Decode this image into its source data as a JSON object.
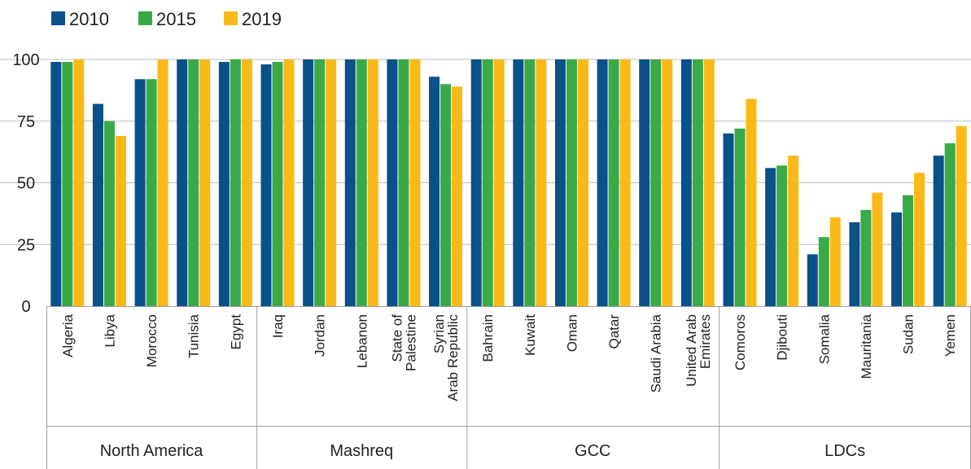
{
  "chart_data": {
    "type": "bar",
    "title": "",
    "xlabel": "",
    "ylabel": "",
    "ylim": [
      0,
      100
    ],
    "yticks": [
      0,
      25,
      50,
      75,
      100
    ],
    "grid": true,
    "legend_position": "top-left",
    "colors": [
      "#0a5089",
      "#3aaa49",
      "#fbb917"
    ],
    "groups": [
      {
        "label": "North America",
        "categories": [
          "Algeria",
          "Libya",
          "Morocco",
          "Tunisia",
          "Egypt"
        ]
      },
      {
        "label": "Mashreq",
        "categories": [
          "Iraq",
          "Jordan",
          "Lebanon",
          "State of|Palestine",
          "Syrian|Arab Republic"
        ]
      },
      {
        "label": "GCC",
        "categories": [
          "Bahrain",
          "Kuwait",
          "Oman",
          "Qatar",
          "Saudi Arabia",
          "United Arab|Emirates"
        ]
      },
      {
        "label": "LDCs",
        "categories": [
          "Comoros",
          "Djibouti",
          "Somalia",
          "Mauritania",
          "Sudan",
          "Yemen"
        ]
      }
    ],
    "categories": [
      "Algeria",
      "Libya",
      "Morocco",
      "Tunisia",
      "Egypt",
      "Iraq",
      "Jordan",
      "Lebanon",
      "State of Palestine",
      "Syrian Arab Republic",
      "Bahrain",
      "Kuwait",
      "Oman",
      "Qatar",
      "Saudi Arabia",
      "United Arab Emirates",
      "Comoros",
      "Djibouti",
      "Somalia",
      "Mauritania",
      "Sudan",
      "Yemen"
    ],
    "series": [
      {
        "name": "2010",
        "values": [
          99,
          82,
          92,
          100,
          99,
          98,
          100,
          100,
          100,
          93,
          100,
          100,
          100,
          100,
          100,
          100,
          70,
          56,
          21,
          34,
          38,
          61
        ]
      },
      {
        "name": "2015",
        "values": [
          99,
          75,
          92,
          100,
          100,
          99,
          100,
          100,
          100,
          90,
          100,
          100,
          100,
          100,
          100,
          100,
          72,
          57,
          28,
          39,
          45,
          66
        ]
      },
      {
        "name": "2019",
        "values": [
          100,
          69,
          100,
          100,
          100,
          100,
          100,
          100,
          100,
          89,
          100,
          100,
          100,
          100,
          100,
          100,
          84,
          61,
          36,
          46,
          54,
          73
        ]
      }
    ]
  }
}
